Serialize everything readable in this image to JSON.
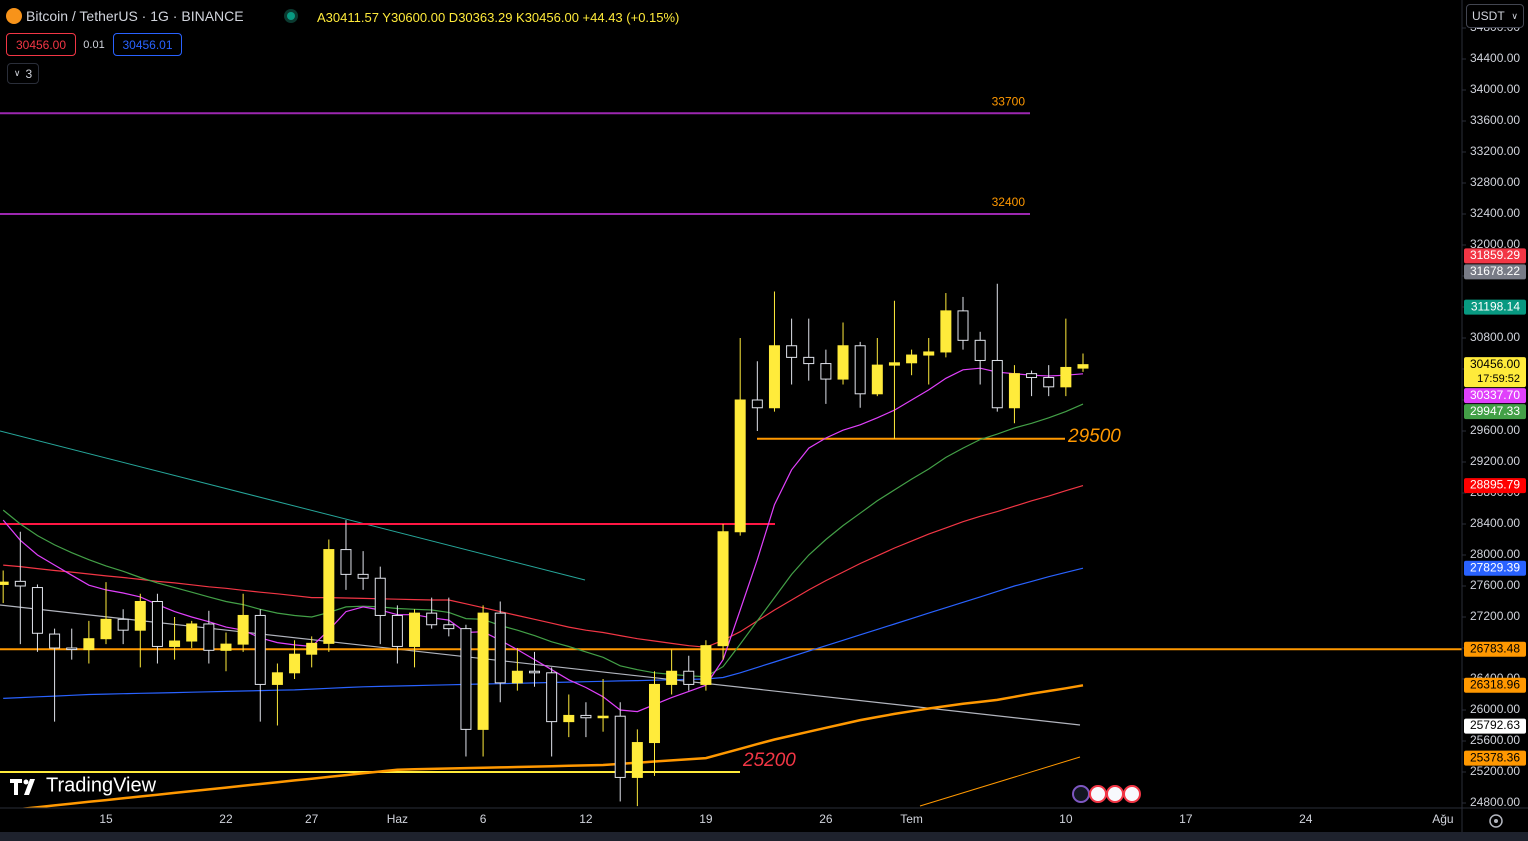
{
  "toolbar": {
    "title": "Bitcoin / TetherUS · 1G · BINANCE",
    "ohlc": "A30411.57 Y30600.00 D30363.29 K30456.00 +44.43 (+0.15%)",
    "sell": "30456.00",
    "spread": "0.01",
    "buy": "30456.01",
    "indicators": "3",
    "currency": "USDT",
    "logo": "TradingView"
  },
  "chart_data": {
    "type": "candlestick",
    "categories": [
      null,
      null,
      null,
      null,
      null,
      null,
      "15",
      null,
      null,
      null,
      null,
      null,
      null,
      "22",
      null,
      null,
      null,
      null,
      "27",
      null,
      null,
      null,
      null,
      "Haz",
      null,
      null,
      null,
      null,
      "6",
      null,
      null,
      null,
      null,
      null,
      "12",
      null,
      null,
      null,
      null,
      null,
      null,
      "19",
      null,
      null,
      null,
      null,
      null,
      null,
      "26",
      null,
      null,
      null,
      null,
      "Tem",
      null,
      null,
      null,
      null,
      null,
      null,
      null,
      null,
      "10",
      null,
      null,
      null,
      null,
      null,
      null,
      "17",
      null,
      null,
      null,
      null,
      null,
      null,
      "24",
      null,
      null,
      null,
      null,
      null,
      null,
      null,
      "Ağu"
    ],
    "open": [
      27620,
      27660,
      27580,
      26980,
      26800,
      26780,
      26920,
      27170,
      27030,
      27400,
      26820,
      26890,
      27110,
      26770,
      26850,
      27220,
      26330,
      26480,
      26720,
      26860,
      28070,
      27750,
      27700,
      27220,
      26820,
      27250,
      27100,
      27050,
      25750,
      27250,
      26350,
      26500,
      26480,
      25850,
      25930,
      25900,
      25920,
      25130,
      25580,
      26330,
      26500,
      26330,
      26830,
      28300,
      30000,
      29900,
      30700,
      30550,
      30470,
      30270,
      30700,
      30080,
      30450,
      30480,
      30580,
      30620,
      31150,
      30770,
      30510,
      29900,
      30340,
      30290,
      30170,
      30411.57,
      null,
      null,
      null,
      null,
      null,
      null,
      null,
      null,
      null,
      null,
      null,
      null,
      null,
      null,
      null,
      null,
      null,
      null,
      null,
      null,
      null
    ],
    "high": [
      27800,
      28300,
      27620,
      27050,
      27050,
      27150,
      27650,
      27300,
      27500,
      27500,
      27200,
      27150,
      27280,
      27000,
      27500,
      27300,
      26600,
      26900,
      26950,
      28200,
      28450,
      28050,
      27850,
      27350,
      27300,
      27450,
      27450,
      27100,
      27350,
      27400,
      26800,
      26750,
      26550,
      26200,
      26100,
      26400,
      26100,
      25750,
      26500,
      26780,
      26700,
      26900,
      28400,
      30800,
      30500,
      31400,
      31050,
      31050,
      30650,
      31000,
      30750,
      30800,
      31280,
      30650,
      30800,
      31380,
      31330,
      30880,
      31500,
      30450,
      30380,
      30450,
      31050,
      30600,
      null,
      null,
      null,
      null,
      null,
      null,
      null,
      null,
      null,
      null,
      null,
      null,
      null,
      null,
      null,
      null,
      null,
      null,
      null,
      null,
      null
    ],
    "low": [
      27380,
      26850,
      26750,
      25850,
      26650,
      26600,
      26850,
      26850,
      26550,
      26600,
      26650,
      26800,
      26600,
      26500,
      26750,
      25850,
      25800,
      26400,
      26550,
      26750,
      27550,
      27550,
      26850,
      26600,
      26550,
      27050,
      26950,
      25400,
      25400,
      26100,
      26250,
      26300,
      25400,
      25650,
      25650,
      25720,
      24820,
      24760,
      25150,
      26200,
      26250,
      26250,
      26650,
      28250,
      29600,
      29850,
      30200,
      30250,
      29950,
      30200,
      29900,
      30050,
      29500,
      30320,
      30200,
      30550,
      30650,
      30200,
      29850,
      29700,
      30050,
      30050,
      30050,
      30363.29,
      null,
      null,
      null,
      null,
      null,
      null,
      null,
      null,
      null,
      null,
      null,
      null,
      null,
      null,
      null,
      null,
      null,
      null,
      null,
      null,
      null
    ],
    "close": [
      27650,
      27600,
      26990,
      26800,
      26780,
      26920,
      27170,
      27030,
      27400,
      26820,
      26890,
      27110,
      26770,
      26850,
      27220,
      26330,
      26480,
      26720,
      26860,
      28070,
      27750,
      27700,
      27220,
      26820,
      27250,
      27100,
      27050,
      25750,
      27250,
      26350,
      26500,
      26480,
      25850,
      25930,
      25900,
      25920,
      25130,
      25580,
      26330,
      26500,
      26330,
      26830,
      28300,
      30000,
      29900,
      30700,
      30550,
      30470,
      30270,
      30700,
      30080,
      30450,
      30480,
      30580,
      30620,
      31150,
      30770,
      30510,
      29900,
      30340,
      30290,
      30170,
      30420,
      30456.0,
      null,
      null,
      null,
      null,
      null,
      null,
      null,
      null,
      null,
      null,
      null,
      null,
      null,
      null,
      null,
      null,
      null,
      null,
      null,
      null,
      null
    ],
    "up_color": "#ffeb3b",
    "down_color": "#e0e3eb",
    "lines": [
      {
        "color": "#ff9800",
        "width": 2.5,
        "values": [
          24700,
          24723,
          24746,
          24769,
          24792,
          24815,
          24838,
          24861,
          24884,
          24907,
          24930,
          24953,
          24976,
          24999,
          25022,
          25045,
          25068,
          25091,
          25114,
          25137,
          25160,
          25183,
          25206,
          25229,
          25235,
          25240,
          25245,
          25250,
          25255,
          25260,
          25265,
          25270,
          25275,
          25280,
          25285,
          25290,
          25305,
          25320,
          25335,
          25350,
          25365,
          25380,
          25440,
          25500,
          25560,
          25620,
          25670,
          25720,
          25770,
          25820,
          25870,
          25910,
          25950,
          25985,
          26020,
          26050,
          26080,
          26105,
          26130,
          26170,
          26210,
          26245,
          26280,
          26318.96,
          null,
          null,
          null,
          null,
          null,
          null,
          null,
          null,
          null,
          null,
          null,
          null,
          null,
          null,
          null,
          null,
          null,
          null,
          null,
          null,
          null
        ]
      },
      {
        "color": "#2962ff",
        "width": 1.2,
        "values": [
          26150,
          26160,
          26170,
          26180,
          26190,
          26200,
          26205,
          26210,
          26215,
          26220,
          26225,
          26230,
          26235,
          26240,
          26245,
          26250,
          26255,
          26260,
          26270,
          26280,
          26290,
          26300,
          26305,
          26310,
          26315,
          26320,
          26325,
          26330,
          26335,
          26340,
          26345,
          26350,
          26355,
          26360,
          26365,
          26370,
          26375,
          26380,
          26385,
          26390,
          26395,
          26400,
          26420,
          26480,
          26550,
          26620,
          26690,
          26760,
          26830,
          26900,
          26970,
          27040,
          27110,
          27180,
          27250,
          27320,
          27390,
          27460,
          27530,
          27600,
          27660,
          27720,
          27775,
          27829.39,
          null,
          null,
          null,
          null,
          null,
          null,
          null,
          null,
          null,
          null,
          null,
          null,
          null,
          null,
          null,
          null,
          null,
          null,
          null,
          null,
          null
        ]
      },
      {
        "color": "#f23645",
        "width": 1.2,
        "values": [
          27870,
          27850,
          27825,
          27800,
          27780,
          27755,
          27730,
          27710,
          27685,
          27660,
          27640,
          27615,
          27590,
          27570,
          27545,
          27520,
          27500,
          27475,
          27450,
          27450,
          27445,
          27440,
          27435,
          27430,
          27425,
          27420,
          27420,
          27370,
          27320,
          27270,
          27220,
          27170,
          27120,
          27070,
          27030,
          27000,
          26960,
          26920,
          26890,
          26860,
          26830,
          26810,
          26900,
          27010,
          27150,
          27290,
          27420,
          27550,
          27670,
          27780,
          27890,
          27990,
          28090,
          28180,
          28270,
          28350,
          28430,
          28500,
          28560,
          28630,
          28700,
          28760,
          28830,
          28895.79,
          null,
          null,
          null,
          null,
          null,
          null,
          null,
          null,
          null,
          null,
          null,
          null,
          null,
          null,
          null,
          null,
          null,
          null,
          null,
          null,
          null
        ]
      },
      {
        "color": "#43a047",
        "width": 1.2,
        "values": [
          28580,
          28400,
          28250,
          28130,
          28030,
          27940,
          27860,
          27790,
          27710,
          27640,
          27580,
          27520,
          27460,
          27400,
          27360,
          27300,
          27250,
          27220,
          27200,
          27260,
          27330,
          27340,
          27330,
          27310,
          27300,
          27290,
          27260,
          27180,
          27170,
          27090,
          27030,
          26960,
          26880,
          26820,
          26750,
          26680,
          26570,
          26520,
          26480,
          26460,
          26440,
          26430,
          26560,
          26850,
          27150,
          27450,
          27750,
          28000,
          28200,
          28380,
          28540,
          28700,
          28840,
          28980,
          29110,
          29260,
          29380,
          29490,
          29560,
          29640,
          29700,
          29770,
          29850,
          29947.33,
          null,
          null,
          null,
          null,
          null,
          null,
          null,
          null,
          null,
          null,
          null,
          null,
          null,
          null,
          null,
          null,
          null,
          null,
          null,
          null,
          null
        ]
      },
      {
        "color": "#e040fb",
        "width": 1.2,
        "values": [
          28450,
          28190,
          28000,
          27870,
          27740,
          27610,
          27550,
          27510,
          27460,
          27360,
          27270,
          27200,
          27140,
          27070,
          27030,
          26930,
          26870,
          26840,
          26820,
          27030,
          27270,
          27330,
          27290,
          27230,
          27230,
          27190,
          27160,
          27000,
          27010,
          26900,
          26780,
          26650,
          26520,
          26390,
          26290,
          26170,
          26000,
          25980,
          26070,
          26160,
          26240,
          26320,
          26650,
          27290,
          27940,
          28650,
          29100,
          29380,
          29510,
          29610,
          29680,
          29770,
          29870,
          30000,
          30130,
          30280,
          30390,
          30410,
          30360,
          30340,
          30320,
          30310,
          30320,
          30337.7,
          null,
          null,
          null,
          null,
          null,
          null,
          null,
          null,
          null,
          null,
          null,
          null,
          null,
          null,
          null,
          null,
          null,
          null,
          null,
          null,
          null
        ]
      }
    ],
    "levels": [
      {
        "value": 33700,
        "color": "#9c27b0",
        "label_color": "#ff9800",
        "label_style": "small"
      },
      {
        "value": 32400,
        "color": "#9c27b0",
        "label_color": "#ff9800",
        "label_style": "small"
      },
      {
        "value": 29500,
        "color": "#ff9800",
        "label_color": "#ff9800",
        "label_style": "big"
      },
      {
        "value": 25200,
        "color": "#ffeb3b",
        "label_color": "#f23645",
        "label_style": "big"
      },
      {
        "value": 28400,
        "color": "#ff1744"
      },
      {
        "value": 26783.48,
        "color": "#ff9800"
      }
    ],
    "price_labels": [
      {
        "value": 31859.29,
        "label": "31859.29",
        "color": "#f23645",
        "text_color": "#ffffff"
      },
      {
        "value": 31678.22,
        "label": "31678.22",
        "color": "#787b86",
        "text_color": "#ffffff"
      },
      {
        "value": 31198.14,
        "label": "31198.14",
        "color": "#089981",
        "text_color": "#ffffff"
      },
      {
        "value": 30456.0,
        "label": "30456.00",
        "color": "#ffeb3b",
        "text_color": "#000000",
        "countdown": "17:59:52"
      },
      {
        "value": 30337.7,
        "label": "30337.70",
        "color": "#e040fb",
        "text_color": "#ffffff"
      },
      {
        "value": 29947.33,
        "label": "29947.33",
        "color": "#43a047",
        "text_color": "#ffffff"
      },
      {
        "value": 28895.79,
        "label": "28895.79",
        "color": "#ff0000",
        "text_color": "#ffffff"
      },
      {
        "value": 27829.39,
        "label": "27829.39",
        "color": "#2962ff",
        "text_color": "#ffffff"
      },
      {
        "value": 26783.48,
        "label": "26783.48",
        "color": "#ff9800",
        "text_color": "#000000"
      },
      {
        "value": 26318.96,
        "label": "26318.96",
        "color": "#ff9800",
        "text_color": "#000000"
      },
      {
        "value": 25792.63,
        "label": "25792.63",
        "color": "#ffffff",
        "text_color": "#000000"
      },
      {
        "value": 25378.36,
        "label": "25378.36",
        "color": "#ff9800",
        "text_color": "#000000"
      }
    ],
    "ylim": [
      24735.5,
      35161.3
    ],
    "yticks": [
      {
        "value": 24800,
        "label": "24800.00"
      },
      {
        "value": 25200,
        "label": "25200.00"
      },
      {
        "value": 25600,
        "label": "25600.00"
      },
      {
        "value": 26000,
        "label": "26000.00"
      },
      {
        "value": 26400,
        "label": "26400.00"
      },
      {
        "value": 26800,
        "label": "26800.00"
      },
      {
        "value": 27200,
        "label": "27200.00"
      },
      {
        "value": 27600,
        "label": "27600.00"
      },
      {
        "value": 28000,
        "label": "28000.00"
      },
      {
        "value": 28400,
        "label": "28400.00"
      },
      {
        "value": 28800,
        "label": "28800.00"
      },
      {
        "value": 29200,
        "label": "29200.00"
      },
      {
        "value": 29600,
        "label": "29600.00"
      },
      {
        "value": 30000,
        "label": "30000.00"
      },
      {
        "value": 30400,
        "label": "30400.00"
      },
      {
        "value": 30800,
        "label": "30800.00"
      },
      {
        "value": 31200,
        "label": "31200.00"
      },
      {
        "value": 31600,
        "label": "31600.00"
      },
      {
        "value": 32000,
        "label": "32000.00"
      },
      {
        "value": 32400,
        "label": "32400.00"
      },
      {
        "value": 32800,
        "label": "32800.00"
      },
      {
        "value": 33200,
        "label": "33200.00"
      },
      {
        "value": 33600,
        "label": "33600.00"
      },
      {
        "value": 34000,
        "label": "34000.00"
      },
      {
        "value": 34400,
        "label": "34400.00"
      },
      {
        "value": 34800,
        "label": "34800.00"
      }
    ],
    "grid": false
  }
}
